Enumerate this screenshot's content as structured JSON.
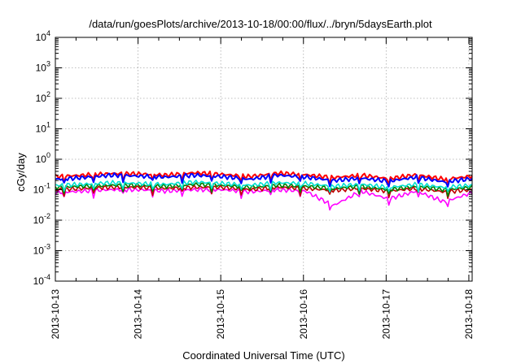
{
  "chart_data": {
    "type": "line",
    "title": "/data/run/goesPlots/archive/2013-10-18/00:00/flux/../bryn/5daysEarth.plot",
    "xlabel": "Coordinated Universal Time (UTC)",
    "ylabel": "cGy/day",
    "y_scale": "log",
    "ylim_exp": [
      -4,
      4
    ],
    "xlim_days": [
      0,
      5.04
    ],
    "x_ticks": [
      "2013-10-13",
      "2013-10-14",
      "2013-10-15",
      "2013-10-16",
      "2013-10-17",
      "2013-10-18"
    ],
    "y_tick_exponents": [
      "-4",
      "-3",
      "-2",
      "-1",
      "0",
      "1",
      "2",
      "3",
      "4"
    ],
    "grid": true,
    "series": [
      {
        "color": "#0000ff",
        "values": [
          0.22,
          0.25,
          0.3,
          0.28,
          0.26,
          0.3,
          0.27,
          0.22,
          0.3,
          0.26,
          0.2,
          0.24,
          0.19,
          0.26,
          0.18,
          0.23
        ]
      },
      {
        "color": "#ff0000",
        "values": [
          0.27,
          0.3,
          0.34,
          0.33,
          0.3,
          0.36,
          0.32,
          0.27,
          0.35,
          0.31,
          0.25,
          0.3,
          0.23,
          0.31,
          0.22,
          0.28
        ]
      },
      {
        "color": "#00e0d0",
        "values": [
          0.14,
          0.15,
          0.17,
          0.16,
          0.15,
          0.18,
          0.16,
          0.14,
          0.17,
          0.16,
          0.13,
          0.15,
          0.12,
          0.15,
          0.12,
          0.14
        ]
      },
      {
        "color": "#008000",
        "values": [
          0.12,
          0.13,
          0.14,
          0.14,
          0.13,
          0.15,
          0.14,
          0.12,
          0.14,
          0.13,
          0.11,
          0.13,
          0.1,
          0.13,
          0.1,
          0.12
        ]
      },
      {
        "color": "#c00000",
        "values": [
          0.1,
          0.11,
          0.12,
          0.12,
          0.11,
          0.12,
          0.12,
          0.1,
          0.12,
          0.11,
          0.095,
          0.11,
          0.09,
          0.11,
          0.085,
          0.1
        ]
      },
      {
        "color": "#ff00ff",
        "values": [
          0.08,
          0.09,
          0.1,
          0.1,
          0.09,
          0.1,
          0.1,
          0.085,
          0.1,
          0.09,
          0.03,
          0.09,
          0.05,
          0.09,
          0.04,
          0.08
        ]
      }
    ]
  }
}
